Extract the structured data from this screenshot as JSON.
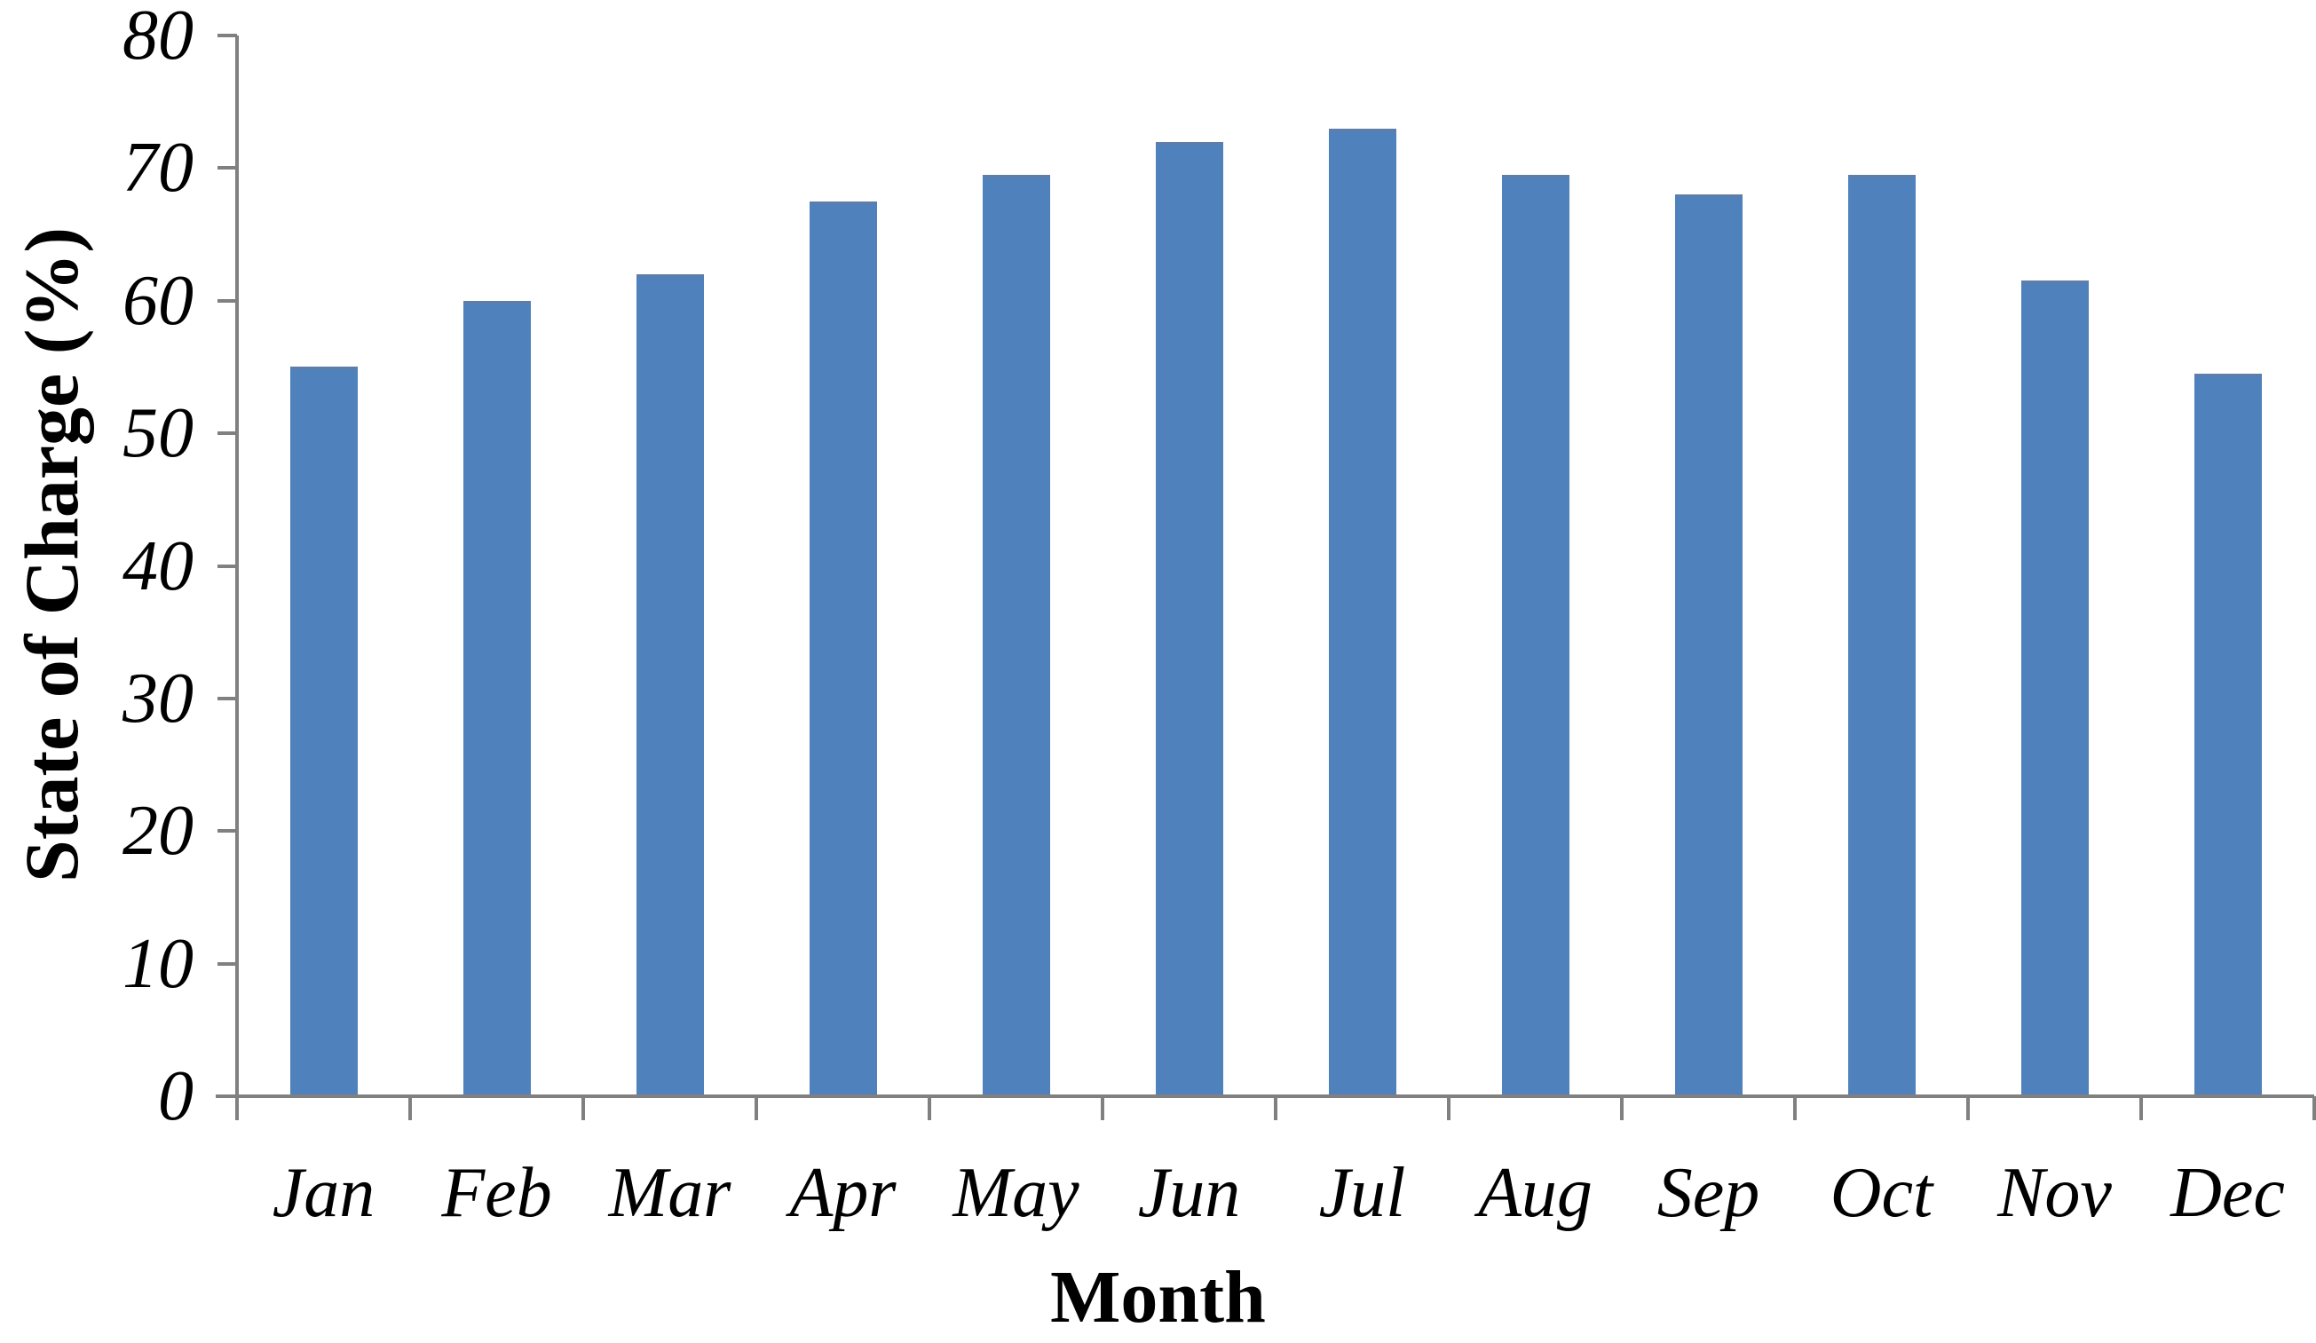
{
  "chart_data": {
    "type": "bar",
    "xlabel": "Month",
    "ylabel": "State of Charge (%)",
    "categories": [
      "Jan",
      "Feb",
      "Mar",
      "Apr",
      "May",
      "Jun",
      "Jul",
      "Aug",
      "Sep",
      "Oct",
      "Nov",
      "Dec"
    ],
    "values": [
      55,
      60,
      62,
      67.5,
      69.5,
      72,
      73,
      69.5,
      68,
      69.5,
      61.5,
      54.5
    ],
    "series_name": "State of Charge",
    "ylim": [
      0,
      80
    ],
    "ytick_step": 10,
    "ytick_labels": [
      "0",
      "10",
      "20",
      "30",
      "40",
      "50",
      "60",
      "70",
      "80"
    ],
    "grid": "off",
    "legend": "none",
    "bar_color": "#4f81bd",
    "axis_color": "#808080",
    "text_color": "#000000",
    "background_color": "#ffffff"
  }
}
